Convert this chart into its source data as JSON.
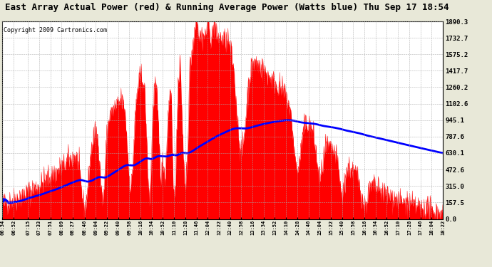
{
  "title": "East Array Actual Power (red) & Running Average Power (Watts blue) Thu Sep 17 18:54",
  "copyright": "Copyright 2009 Cartronics.com",
  "y_ticks": [
    0.0,
    157.5,
    315.0,
    472.6,
    630.1,
    787.6,
    945.1,
    1102.6,
    1260.2,
    1417.7,
    1575.2,
    1732.7,
    1890.3
  ],
  "ymax": 1890.3,
  "bg_color": "#e8e8d8",
  "plot_bg": "#ffffff",
  "grid_color": "#aaaaaa",
  "actual_color": "red",
  "avg_color": "blue",
  "x_labels": [
    "06:34",
    "06:52",
    "07:15",
    "07:33",
    "07:51",
    "08:09",
    "08:27",
    "08:46",
    "09:04",
    "09:22",
    "09:40",
    "09:58",
    "10:16",
    "10:34",
    "10:52",
    "11:10",
    "11:28",
    "11:46",
    "12:04",
    "12:22",
    "12:40",
    "12:58",
    "13:16",
    "13:34",
    "13:52",
    "14:10",
    "14:28",
    "14:46",
    "15:04",
    "15:22",
    "15:40",
    "15:58",
    "16:16",
    "16:34",
    "16:52",
    "17:10",
    "17:28",
    "17:46",
    "18:04",
    "18:22"
  ],
  "title_fontsize": 9,
  "copyright_fontsize": 6,
  "avg_peak_time_min": 870,
  "avg_peak_val": 945
}
